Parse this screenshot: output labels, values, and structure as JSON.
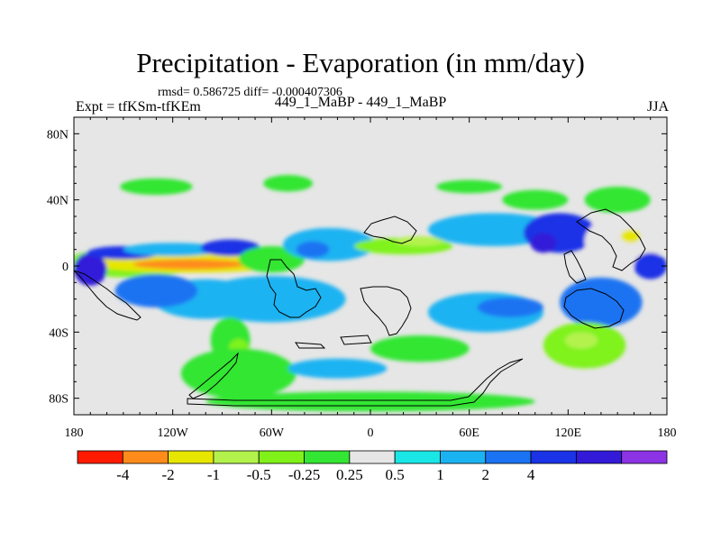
{
  "title": "Precipitation - Evaporation (in mm/day)",
  "stats": "rmsd= 0.586725 diff= -0.000407306",
  "left_label": "Expt = tfKSm-tfKEm",
  "center_label": "449_1_MaBP - 449_1_MaBP",
  "right_label": "JJA",
  "colors": {
    "background_zero": "#e6e6e6",
    "coastline": "#000000"
  },
  "chart_data": {
    "type": "heatmap",
    "title": "Precipitation - Evaporation (in mm/day)",
    "xlabel": "",
    "ylabel": "",
    "xlim": [
      -180,
      180
    ],
    "ylim": [
      -90,
      90
    ],
    "x_ticks": [
      {
        "value": -180,
        "label": "180"
      },
      {
        "value": -120,
        "label": "120W"
      },
      {
        "value": -60,
        "label": "60W"
      },
      {
        "value": 0,
        "label": "0"
      },
      {
        "value": 60,
        "label": "60E"
      },
      {
        "value": 120,
        "label": "120E"
      },
      {
        "value": 180,
        "label": "180"
      }
    ],
    "y_ticks": [
      {
        "value": 80,
        "label": "80N"
      },
      {
        "value": 40,
        "label": "40N"
      },
      {
        "value": 0,
        "label": "0"
      },
      {
        "value": -40,
        "label": "40S"
      },
      {
        "value": -80,
        "label": "80S"
      }
    ],
    "colorbar": {
      "colors": [
        "#ff1a00",
        "#ff8c1a",
        "#e6e600",
        "#b3f24d",
        "#80f21a",
        "#33e633",
        "#e6e6e6",
        "#1ae6e6",
        "#1ab3f2",
        "#1a73f2",
        "#1a33e6",
        "#331ad9",
        "#8c33e6"
      ],
      "boundary_labels": [
        "-4",
        "-2",
        "-1",
        "-0.5",
        "-0.25",
        "0.25",
        "0.5",
        "1",
        "2",
        "4"
      ],
      "label_boundary_indices": [
        1,
        2,
        3,
        4,
        5,
        6,
        7,
        8,
        9,
        10
      ]
    },
    "regions": [
      {
        "lon": -145,
        "lat": 2,
        "rlon": 40,
        "rlat": 9,
        "level": 4
      },
      {
        "lon": -110,
        "lat": 2,
        "rlon": 62,
        "rlat": 6,
        "level": 2
      },
      {
        "lon": -110,
        "lat": 1,
        "rlon": 34,
        "rlat": 3,
        "level": 1
      },
      {
        "lon": -170,
        "lat": -2,
        "rlon": 10,
        "rlat": 10,
        "level": 11
      },
      {
        "lon": -150,
        "lat": 8,
        "rlon": 22,
        "rlat": 4,
        "level": 10
      },
      {
        "lon": -120,
        "lat": 10,
        "rlon": 30,
        "rlat": 4,
        "level": 8
      },
      {
        "lon": -85,
        "lat": 11,
        "rlon": 18,
        "rlat": 5,
        "level": 10
      },
      {
        "lon": -60,
        "lat": 4,
        "rlon": 20,
        "rlat": 8,
        "level": 5
      },
      {
        "lon": -25,
        "lat": 13,
        "rlon": 28,
        "rlat": 10,
        "level": 8
      },
      {
        "lon": -35,
        "lat": 10,
        "rlon": 10,
        "rlat": 5,
        "level": 9
      },
      {
        "lon": 20,
        "lat": 12,
        "rlon": 30,
        "rlat": 5,
        "level": 4
      },
      {
        "lon": 30,
        "lat": 15,
        "rlon": 15,
        "rlat": 3,
        "level": 3
      },
      {
        "lon": 75,
        "lat": 22,
        "rlon": 40,
        "rlat": 10,
        "level": 8
      },
      {
        "lon": 115,
        "lat": 20,
        "rlon": 22,
        "rlat": 12,
        "level": 10
      },
      {
        "lon": 105,
        "lat": 14,
        "rlon": 8,
        "rlat": 6,
        "level": 11
      },
      {
        "lon": 155,
        "lat": 15,
        "rlon": 25,
        "rlat": 16,
        "level": 6
      },
      {
        "lon": 158,
        "lat": 18,
        "rlon": 6,
        "rlat": 4,
        "level": 2
      },
      {
        "lon": 170,
        "lat": 0,
        "rlon": 10,
        "rlat": 8,
        "level": 10
      },
      {
        "lon": -60,
        "lat": -20,
        "rlon": 45,
        "rlat": 14,
        "level": 8
      },
      {
        "lon": -100,
        "lat": -20,
        "rlon": 32,
        "rlat": 12,
        "level": 8
      },
      {
        "lon": -130,
        "lat": -15,
        "rlon": 25,
        "rlat": 10,
        "level": 9
      },
      {
        "lon": 70,
        "lat": -28,
        "rlon": 35,
        "rlat": 12,
        "level": 8
      },
      {
        "lon": 85,
        "lat": -25,
        "rlon": 20,
        "rlat": 6,
        "level": 9
      },
      {
        "lon": 140,
        "lat": -22,
        "rlon": 25,
        "rlat": 15,
        "level": 9
      },
      {
        "lon": -85,
        "lat": -45,
        "rlon": 12,
        "rlat": 14,
        "level": 5
      },
      {
        "lon": -80,
        "lat": -50,
        "rlon": 6,
        "rlat": 6,
        "level": 4
      },
      {
        "lon": -80,
        "lat": -65,
        "rlon": 35,
        "rlat": 15,
        "level": 5
      },
      {
        "lon": 130,
        "lat": -48,
        "rlon": 25,
        "rlat": 14,
        "level": 4
      },
      {
        "lon": 128,
        "lat": -45,
        "rlon": 10,
        "rlat": 5,
        "level": 3
      },
      {
        "lon": 30,
        "lat": -50,
        "rlon": 30,
        "rlat": 8,
        "level": 5
      },
      {
        "lon": -20,
        "lat": -62,
        "rlon": 30,
        "rlat": 6,
        "level": 8
      },
      {
        "lon": 0,
        "lat": -82,
        "rlon": 100,
        "rlat": 6,
        "level": 5
      },
      {
        "lon": -130,
        "lat": 48,
        "rlon": 22,
        "rlat": 5,
        "level": 5
      },
      {
        "lon": -50,
        "lat": 50,
        "rlon": 15,
        "rlat": 5,
        "level": 5
      },
      {
        "lon": 60,
        "lat": 48,
        "rlon": 20,
        "rlat": 4,
        "level": 5
      },
      {
        "lon": 100,
        "lat": 40,
        "rlon": 20,
        "rlat": 6,
        "level": 5
      },
      {
        "lon": 150,
        "lat": 40,
        "rlon": 20,
        "rlat": 8,
        "level": 5
      }
    ]
  }
}
